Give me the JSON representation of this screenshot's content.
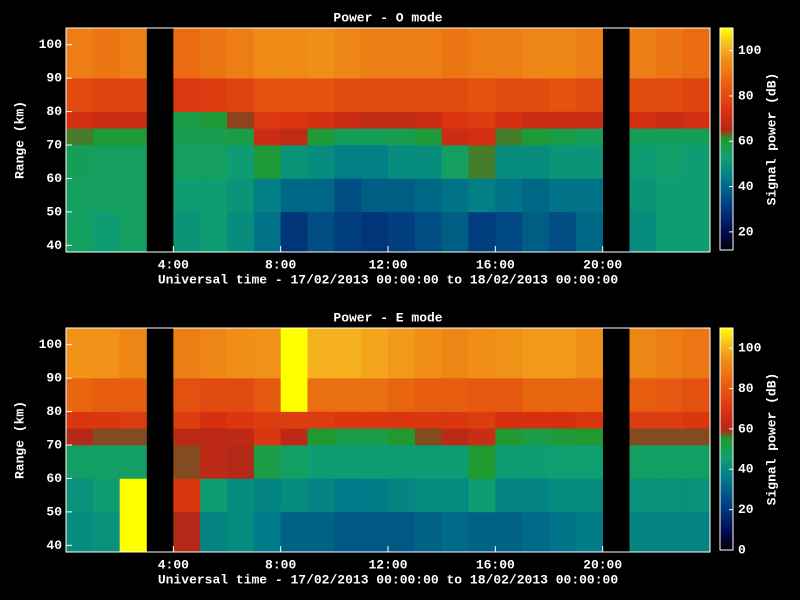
{
  "colormap": [
    {
      "at": 0,
      "color": "#000000"
    },
    {
      "at": 0.08,
      "color": "#000a50"
    },
    {
      "at": 0.2,
      "color": "#003c80"
    },
    {
      "at": 0.32,
      "color": "#007a8a"
    },
    {
      "at": 0.42,
      "color": "#10a070"
    },
    {
      "at": 0.5,
      "color": "#209a30"
    },
    {
      "at": 0.54,
      "color": "#b02818"
    },
    {
      "at": 0.62,
      "color": "#d83010"
    },
    {
      "at": 0.75,
      "color": "#e86010"
    },
    {
      "at": 0.86,
      "color": "#f09018"
    },
    {
      "at": 0.93,
      "color": "#f8c020"
    },
    {
      "at": 1,
      "color": "#ffff00"
    }
  ],
  "chart_data": [
    {
      "type": "heatmap",
      "title": "Power - O mode",
      "x_label": "Universal time - 17/02/2013 00:00:00 to 18/02/2013 00:00:00",
      "y_label": "Range (km)",
      "colorbar_label": "Signal power (dB)",
      "x_edges": [
        0,
        1,
        2,
        3,
        4,
        5,
        6,
        7,
        8,
        9,
        10,
        11,
        12,
        13,
        14,
        15,
        16,
        17,
        18,
        19,
        20,
        21,
        22,
        23,
        24
      ],
      "y_edges": [
        38,
        50,
        60,
        70,
        75,
        80,
        90,
        105
      ],
      "xlim": [
        0,
        24
      ],
      "ylim": [
        38,
        105
      ],
      "xticks": [
        {
          "value": 4,
          "label": "4:00"
        },
        {
          "value": 8,
          "label": "8:00"
        },
        {
          "value": 12,
          "label": "12:00"
        },
        {
          "value": 16,
          "label": "16:00"
        },
        {
          "value": 20,
          "label": "20:00"
        }
      ],
      "yticks": [
        40,
        50,
        60,
        70,
        80,
        90,
        100
      ],
      "clim": [
        12,
        110
      ],
      "cticks": [
        20,
        40,
        60,
        80,
        100
      ],
      "z": [
        [
          55,
          52,
          55,
          null,
          50,
          52,
          48,
          42,
          30,
          35,
          32,
          30,
          32,
          35,
          38,
          32,
          34,
          38,
          35,
          40,
          null,
          48,
          52,
          52
        ],
        [
          55,
          55,
          55,
          null,
          52,
          52,
          50,
          45,
          40,
          40,
          35,
          38,
          38,
          40,
          42,
          45,
          42,
          40,
          42,
          42,
          null,
          50,
          52,
          52
        ],
        [
          56,
          55,
          55,
          null,
          55,
          55,
          52,
          60,
          50,
          48,
          45,
          45,
          48,
          48,
          55,
          62,
          48,
          48,
          50,
          50,
          null,
          52,
          54,
          52
        ],
        [
          62,
          60,
          60,
          null,
          57,
          57,
          58,
          70,
          68,
          60,
          56,
          56,
          57,
          60,
          70,
          72,
          62,
          60,
          58,
          56,
          null,
          56,
          56,
          56
        ],
        [
          72,
          70,
          70,
          null,
          58,
          60,
          64,
          75,
          74,
          72,
          70,
          68,
          68,
          70,
          74,
          76,
          72,
          70,
          70,
          70,
          null,
          72,
          70,
          72
        ],
        [
          80,
          78,
          78,
          null,
          75,
          76,
          78,
          82,
          82,
          82,
          80,
          80,
          80,
          80,
          80,
          82,
          80,
          80,
          82,
          80,
          null,
          80,
          80,
          78
        ],
        [
          92,
          90,
          92,
          null,
          88,
          90,
          92,
          95,
          95,
          96,
          94,
          92,
          92,
          92,
          90,
          92,
          92,
          94,
          94,
          92,
          null,
          92,
          90,
          88
        ]
      ]
    },
    {
      "type": "heatmap",
      "title": "Power - E mode",
      "x_label": "Universal time - 17/02/2013 00:00:00 to 18/02/2013 00:00:00",
      "y_label": "Range (km)",
      "colorbar_label": "Signal power (dB)",
      "x_edges": [
        0,
        1,
        2,
        3,
        4,
        5,
        6,
        7,
        8,
        9,
        10,
        11,
        12,
        13,
        14,
        15,
        16,
        17,
        18,
        19,
        20,
        21,
        22,
        23,
        24
      ],
      "y_edges": [
        38,
        50,
        60,
        70,
        75,
        80,
        90,
        105
      ],
      "xlim": [
        0,
        24
      ],
      "ylim": [
        38,
        105
      ],
      "xticks": [
        {
          "value": 4,
          "label": "4:00"
        },
        {
          "value": 8,
          "label": "8:00"
        },
        {
          "value": 12,
          "label": "12:00"
        },
        {
          "value": 16,
          "label": "16:00"
        },
        {
          "value": 20,
          "label": "20:00"
        }
      ],
      "yticks": [
        40,
        50,
        60,
        70,
        80,
        90,
        100
      ],
      "clim": [
        0,
        110
      ],
      "cticks": [
        0,
        20,
        40,
        60,
        80,
        100
      ],
      "z": [
        [
          40,
          42,
          110,
          null,
          60,
          38,
          40,
          35,
          30,
          30,
          28,
          28,
          28,
          30,
          32,
          30,
          30,
          32,
          34,
          36,
          null,
          38,
          38,
          38
        ],
        [
          42,
          45,
          110,
          null,
          70,
          45,
          40,
          38,
          40,
          38,
          35,
          36,
          38,
          40,
          40,
          45,
          38,
          38,
          40,
          40,
          null,
          42,
          42,
          42
        ],
        [
          48,
          48,
          48,
          null,
          58,
          62,
          60,
          52,
          48,
          45,
          45,
          45,
          45,
          45,
          45,
          55,
          45,
          45,
          46,
          46,
          null,
          48,
          48,
          48
        ],
        [
          60,
          58,
          58,
          null,
          62,
          62,
          62,
          70,
          62,
          55,
          52,
          52,
          55,
          58,
          62,
          65,
          55,
          52,
          54,
          55,
          null,
          58,
          58,
          58
        ],
        [
          70,
          70,
          72,
          null,
          72,
          68,
          70,
          72,
          72,
          72,
          70,
          70,
          70,
          70,
          70,
          72,
          68,
          68,
          68,
          70,
          null,
          72,
          72,
          70
        ],
        [
          84,
          82,
          82,
          null,
          78,
          76,
          76,
          80,
          110,
          86,
          86,
          86,
          84,
          82,
          82,
          80,
          80,
          84,
          84,
          84,
          null,
          82,
          80,
          78
        ],
        [
          95,
          95,
          92,
          null,
          90,
          92,
          94,
          95,
          110,
          100,
          100,
          98,
          96,
          94,
          92,
          94,
          95,
          96,
          96,
          94,
          null,
          92,
          90,
          88
        ]
      ]
    }
  ]
}
